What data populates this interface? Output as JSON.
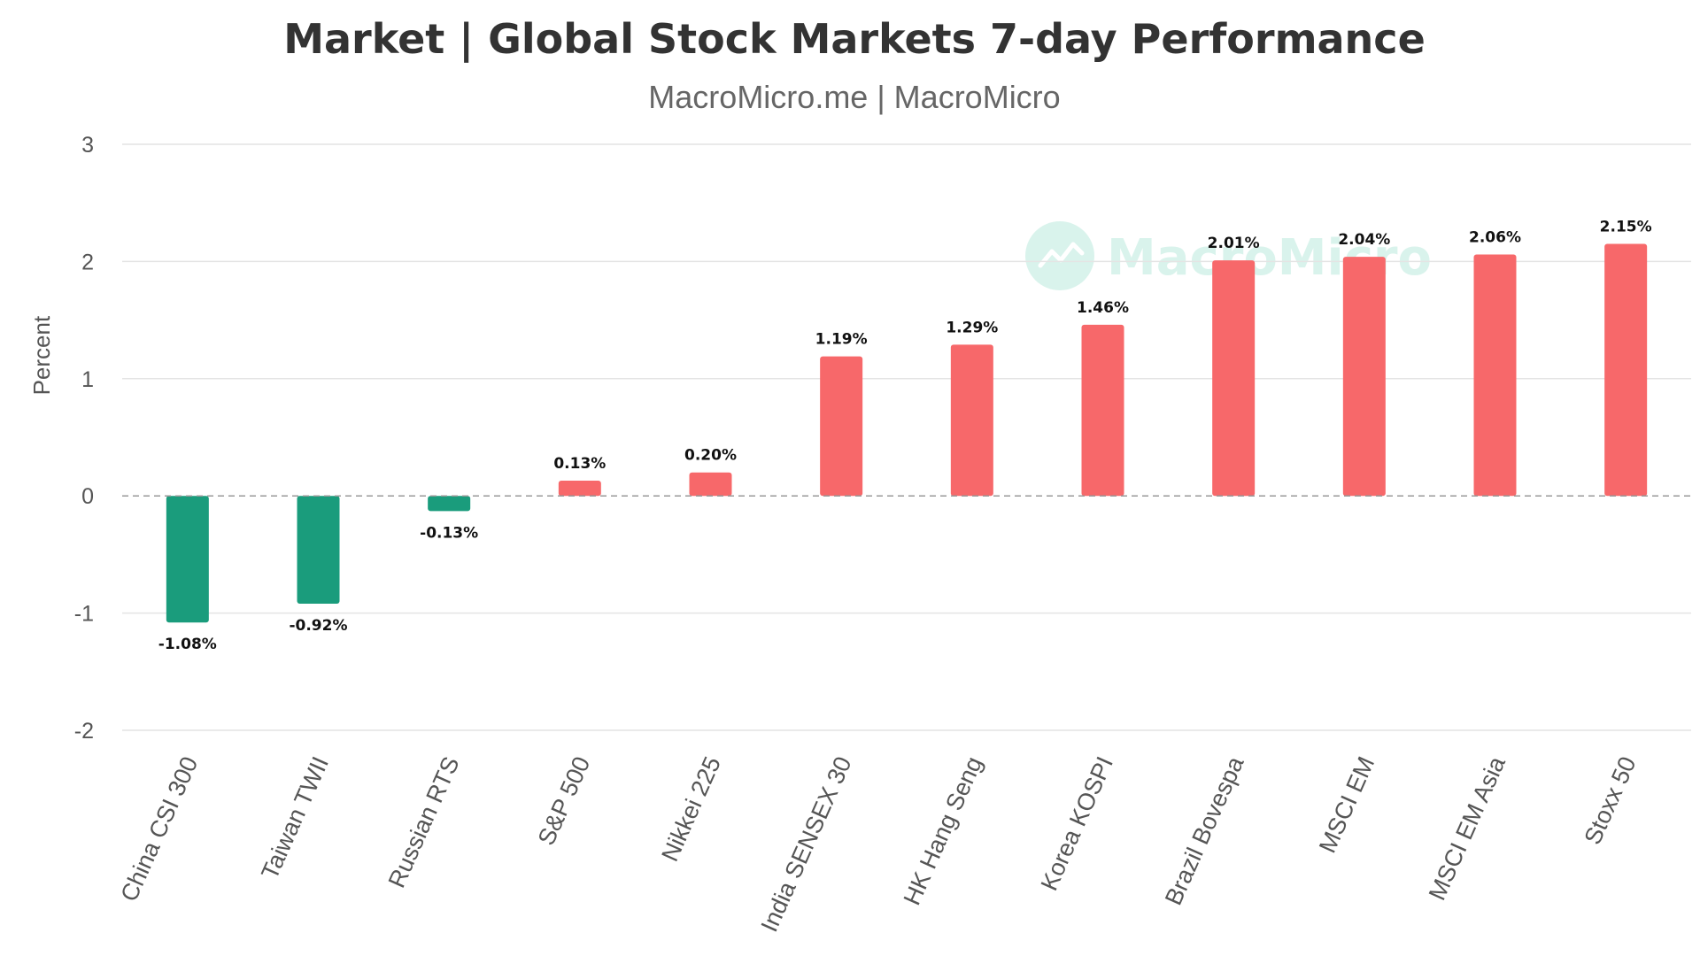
{
  "header": {
    "title": "Market | Global Stock Markets 7-day Performance",
    "subtitle": "MacroMicro.me | MacroMicro"
  },
  "watermark": {
    "text": "MacroMicro"
  },
  "colors": {
    "positive": "#f7686a",
    "negative": "#1a9c7c",
    "watermark": "#d9f3ec"
  },
  "chart_data": {
    "type": "bar",
    "title": "Market | Global Stock Markets 7-day Performance",
    "subtitle": "MacroMicro.me | MacroMicro",
    "xlabel": "",
    "ylabel": "Percent",
    "ylim": [
      -2,
      3
    ],
    "yticks": [
      3,
      2,
      1,
      0,
      -1,
      -2
    ],
    "grid": true,
    "legend": "none",
    "categories": [
      "China CSI 300",
      "Taiwan TWII",
      "Russian RTS",
      "S&P 500",
      "Nikkei 225",
      "India SENSEX 30",
      "HK Hang Seng",
      "Korea KOSPI",
      "Brazil Bovespa",
      "MSCI EM",
      "MSCI EM Asia",
      "Stoxx 50"
    ],
    "values": [
      -1.08,
      -0.92,
      -0.13,
      0.13,
      0.2,
      1.19,
      1.29,
      1.46,
      2.01,
      2.04,
      2.06,
      2.15
    ],
    "data_labels": [
      "-1.08%",
      "-0.92%",
      "-0.13%",
      "0.13%",
      "0.20%",
      "1.19%",
      "1.29%",
      "1.46%",
      "2.01%",
      "2.04%",
      "2.06%",
      "2.15%"
    ]
  }
}
